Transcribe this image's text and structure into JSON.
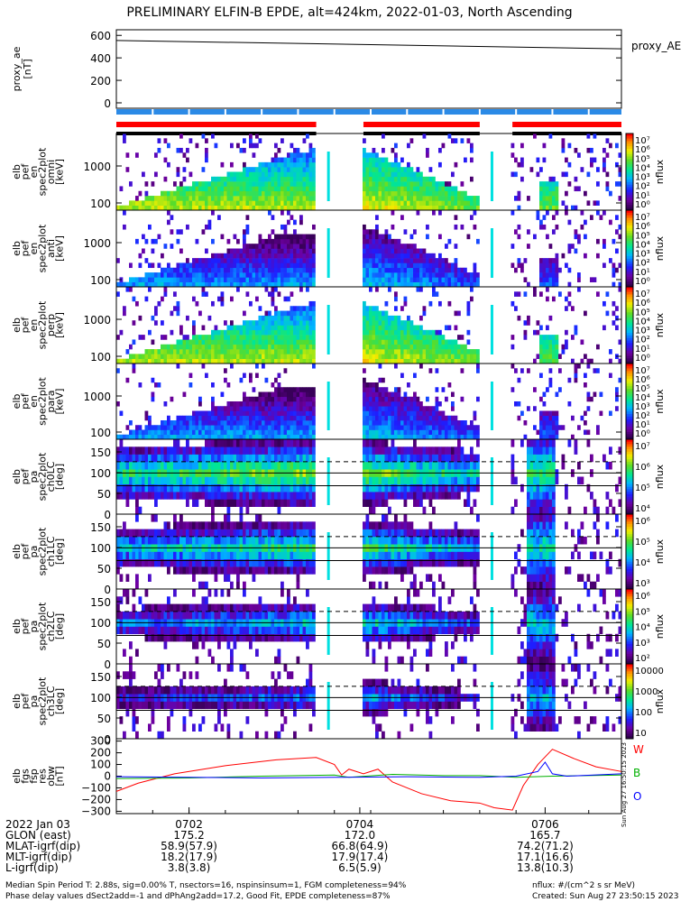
{
  "title": "PRELIMINARY ELFIN-B EPDE, alt=424km, 2022-01-03, North Ascending",
  "colors": {
    "red": "#ff0000",
    "blue": "#2b8ae6",
    "green": "#00b000",
    "darkblue": "#0000ff",
    "dark_purple": "#32004a",
    "bar_black": "#000000"
  },
  "panels": [
    {
      "id": "proxy_ae",
      "ylabel": [
        "proxy_ae",
        "[nT]"
      ],
      "ticks": [
        "600",
        "400",
        "200",
        "0"
      ],
      "right_label": "proxy_AE"
    },
    {
      "id": "pef_en_omni",
      "ylabel": [
        "elb",
        "pef",
        "en",
        "spec2plot",
        "omni",
        "[keV]"
      ],
      "ticks": [
        "1000",
        "100"
      ],
      "cbar_ticks": [
        "10⁷",
        "10⁶",
        "10⁵",
        "10⁴",
        "10³",
        "10²",
        "10¹",
        "10⁰"
      ],
      "cbar_unit": "nflux"
    },
    {
      "id": "pef_en_anti",
      "ylabel": [
        "elb",
        "pef",
        "en",
        "spec2plot",
        "anti",
        "[keV]"
      ],
      "ticks": [
        "1000",
        "100"
      ],
      "cbar_ticks": [
        "10⁷",
        "10⁶",
        "10⁵",
        "10⁴",
        "10³",
        "10²",
        "10¹",
        "10⁰"
      ],
      "cbar_unit": "nflux"
    },
    {
      "id": "pef_en_perp",
      "ylabel": [
        "elb",
        "pef",
        "en",
        "spec2plot",
        "perp",
        "[keV]"
      ],
      "ticks": [
        "1000",
        "100"
      ],
      "cbar_ticks": [
        "10⁷",
        "10⁶",
        "10⁵",
        "10⁴",
        "10³",
        "10²",
        "10¹",
        "10⁰"
      ],
      "cbar_unit": "nflux"
    },
    {
      "id": "pef_en_para",
      "ylabel": [
        "elb",
        "pef",
        "en",
        "spec2plot",
        "para",
        "[keV]"
      ],
      "ticks": [
        "1000",
        "100"
      ],
      "cbar_ticks": [
        "10⁷",
        "10⁶",
        "10⁵",
        "10⁴",
        "10³",
        "10²",
        "10¹",
        "10⁰"
      ],
      "cbar_unit": "nflux"
    },
    {
      "id": "pef_pa_ch0",
      "ylabel": [
        "elb",
        "pef",
        "pa",
        "spec2plot",
        "ch0LC",
        "[deg]"
      ],
      "ticks": [
        "150",
        "100",
        "50",
        "0"
      ],
      "cbar_ticks": [
        "10⁷",
        "10⁶",
        "10⁵",
        "10⁴"
      ],
      "cbar_unit": "nflux"
    },
    {
      "id": "pef_pa_ch1",
      "ylabel": [
        "elb",
        "pef",
        "pa",
        "spec2plot",
        "ch1LC",
        "[deg]"
      ],
      "ticks": [
        "150",
        "100",
        "50",
        "0"
      ],
      "cbar_ticks": [
        "10⁶",
        "10⁵",
        "10⁴",
        "10³"
      ],
      "cbar_unit": "nflux"
    },
    {
      "id": "pef_pa_ch2",
      "ylabel": [
        "elb",
        "pef",
        "pa",
        "spec2plot",
        "ch2LC",
        "[deg]"
      ],
      "ticks": [
        "150",
        "100",
        "50",
        "0"
      ],
      "cbar_ticks": [
        "10⁶",
        "10⁵",
        "10⁴",
        "10³",
        "10²"
      ],
      "cbar_unit": "nflux"
    },
    {
      "id": "pef_pa_ch3",
      "ylabel": [
        "elb",
        "pef",
        "pa",
        "spec2plot",
        "ch3LC",
        "[deg]"
      ],
      "ticks": [
        "150",
        "100",
        "50",
        "0"
      ],
      "cbar_ticks": [
        "10000",
        "1000",
        "100",
        "10"
      ],
      "cbar_unit": "nflux"
    },
    {
      "id": "fgs_res",
      "ylabel": [
        "elb",
        "fgs",
        "fsp",
        "res",
        "obw",
        "[nT]"
      ],
      "ticks": [
        "300",
        "200",
        "100",
        "0",
        "−100",
        "−200",
        "−300"
      ],
      "legend": [
        {
          "text": "W",
          "color": "#ff0000"
        },
        {
          "text": "B",
          "color": "#00b000"
        },
        {
          "text": "O",
          "color": "#0000ff"
        }
      ],
      "created_stamp": "Sun Aug 27 16:50:15 2023"
    }
  ],
  "footer": {
    "rows": [
      {
        "label": "2022 Jan 03",
        "values": [
          "0702",
          "0704",
          "0706"
        ]
      },
      {
        "label": "GLON (east)",
        "values": [
          "175.2",
          "172.0",
          "165.7"
        ]
      },
      {
        "label": "MLAT-igrf(dip)",
        "values": [
          "58.9(57.9)",
          "66.8(64.9)",
          "74.2(71.2)"
        ]
      },
      {
        "label": "MLT-igrf(dip)",
        "values": [
          "18.2(17.9)",
          "17.9(17.4)",
          "17.1(16.6)"
        ]
      },
      {
        "label": "L-igrf(dip)",
        "values": [
          "3.8(3.8)",
          "6.5(5.9)",
          "13.8(10.3)"
        ]
      }
    ],
    "note1": "Median Spin Period T: 2.88s, sig=0.00% T, nsectors=16, nspinsinsum=1, FGM completeness=94%",
    "note2": "Phase delay values dSect2add=-1 and dPhAng2add=17.2, Good Fit, EPDE completeness=87%",
    "units": "nflux: #/(cm^2 s sr MeV)",
    "created": "Created: Sun Aug 27 23:50:15 2023"
  },
  "chart_data": {
    "type": "heatmap",
    "title": "PRELIMINARY ELFIN-B EPDE, alt=424km, 2022-01-03, North Ascending",
    "x_ticks": [
      "0702",
      "0704",
      "0706"
    ],
    "time_range_minutes": [
      0.0,
      6.95
    ],
    "proxy_ae": {
      "x": [
        0.0,
        6.95
      ],
      "y": [
        555,
        480
      ],
      "ylim": [
        0,
        650
      ]
    },
    "data_gaps_minutes": [
      [
        2.75,
        3.4
      ],
      [
        5.0,
        5.45
      ]
    ],
    "fgs_res": {
      "ylim": [
        -320,
        320
      ],
      "series": [
        {
          "name": "W",
          "x": [
            0,
            0.3,
            0.8,
            1.5,
            2.2,
            2.75,
            3.0,
            3.1,
            3.2,
            3.4,
            3.6,
            3.8,
            4.2,
            4.6,
            5.0,
            5.2,
            5.45,
            5.6,
            5.8,
            6.0,
            6.3,
            6.6,
            6.95
          ],
          "y": [
            -130,
            -60,
            20,
            90,
            140,
            160,
            100,
            10,
            60,
            20,
            60,
            -50,
            -150,
            -210,
            -230,
            -270,
            -290,
            -80,
            100,
            230,
            150,
            80,
            40
          ]
        },
        {
          "name": "B",
          "x": [
            0,
            1,
            2,
            3,
            3.2,
            3.8,
            4.5,
            5.0,
            5.5,
            6.0,
            6.95
          ],
          "y": [
            -20,
            -15,
            0,
            10,
            -10,
            15,
            5,
            5,
            -10,
            0,
            10
          ]
        },
        {
          "name": "O",
          "x": [
            0,
            1,
            2,
            3,
            4,
            5,
            5.5,
            5.8,
            5.9,
            6.0,
            6.2,
            6.95
          ],
          "y": [
            -5,
            -10,
            -15,
            -10,
            -5,
            -10,
            0,
            40,
            120,
            20,
            0,
            20
          ]
        }
      ]
    }
  }
}
